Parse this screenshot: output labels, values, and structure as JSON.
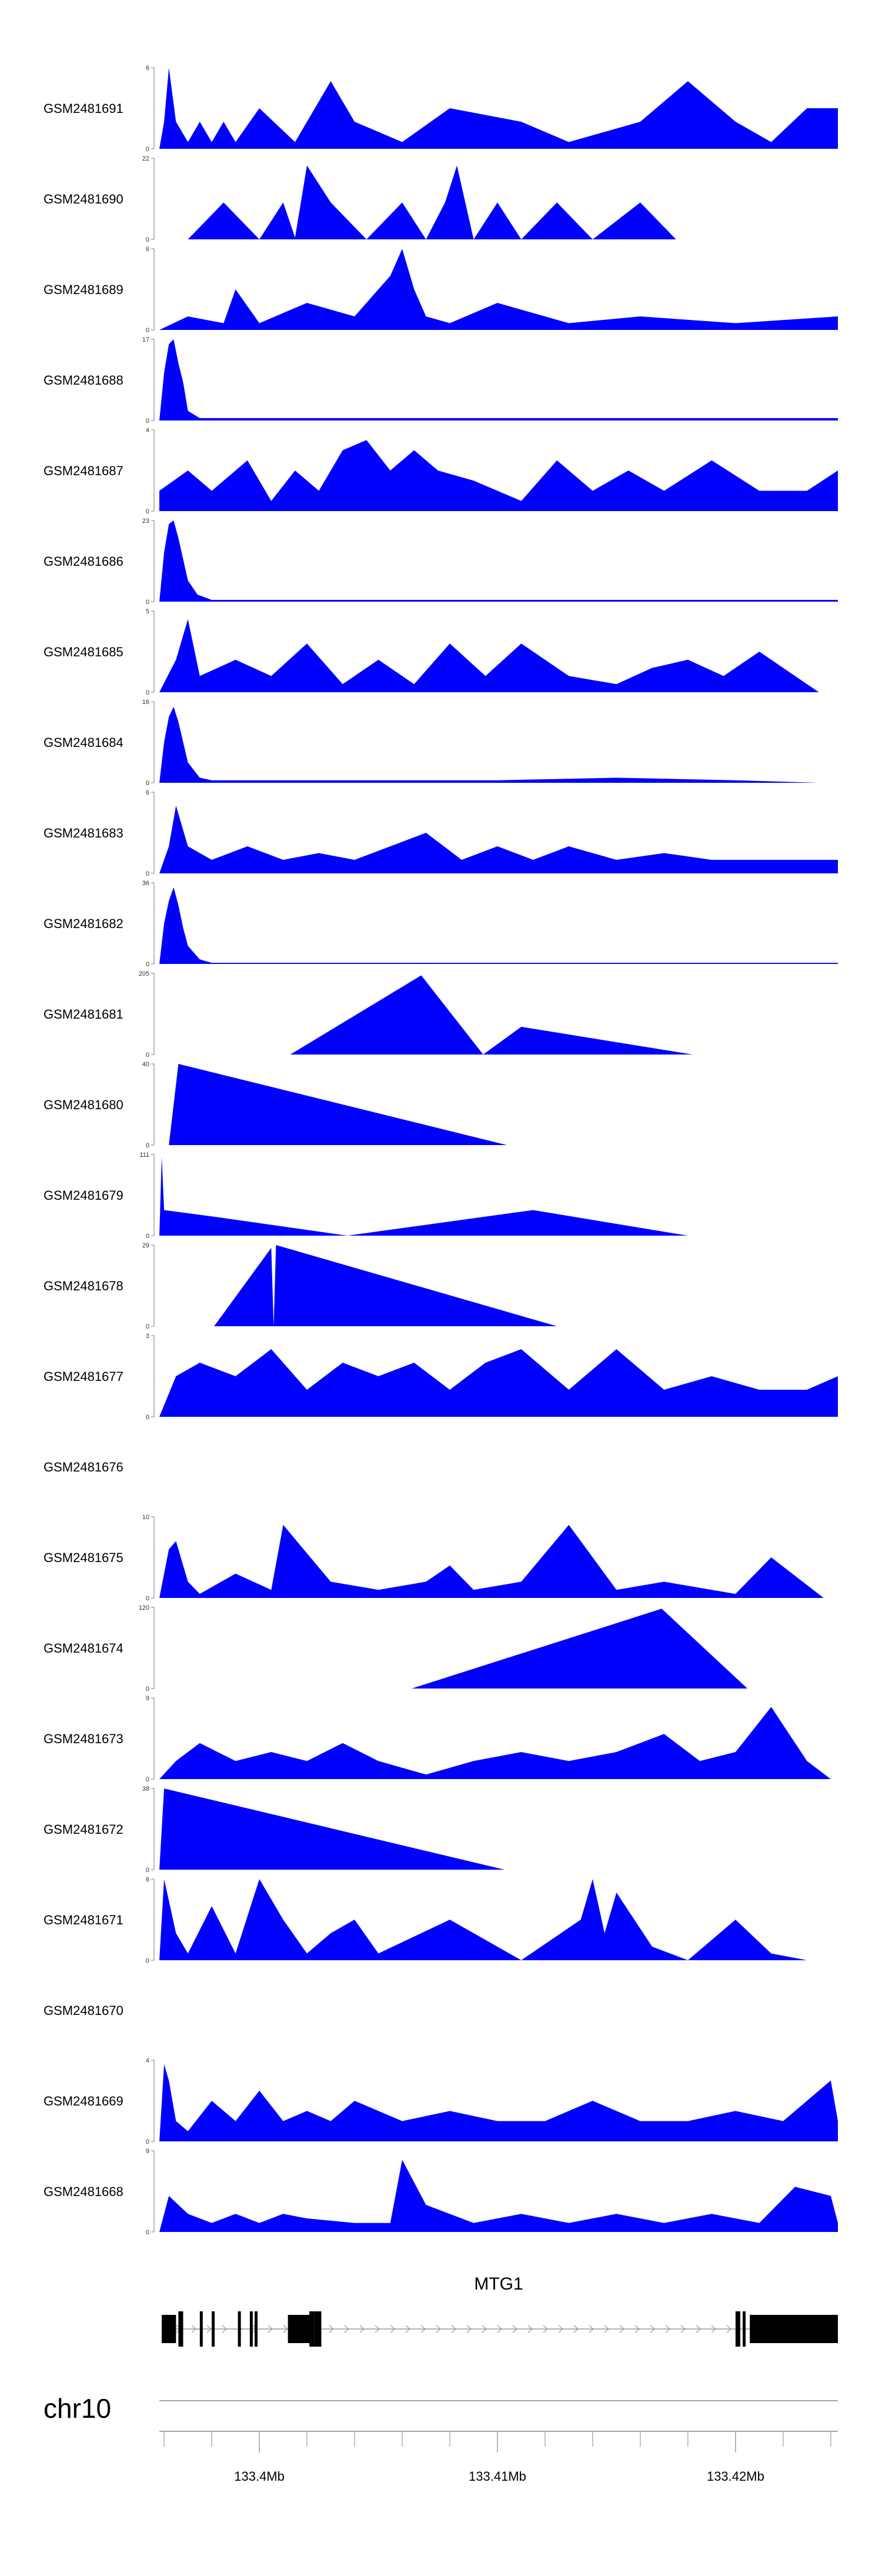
{
  "chart_data": {
    "type": "area",
    "title": "",
    "x_range": [
      133.3958,
      133.4243
    ],
    "xlabel": "",
    "ylabel": "",
    "fill_color": "#0000ff",
    "tracks": [
      {
        "name": "GSM2481691",
        "ymax": 6,
        "x": [
          133.3958,
          133.396,
          133.3962,
          133.3965,
          133.397,
          133.3975,
          133.398,
          133.3985,
          133.399,
          133.4,
          133.4015,
          133.403,
          133.404,
          133.406,
          133.408,
          133.411,
          133.413,
          133.416,
          133.418,
          133.42,
          133.4215,
          133.423,
          133.4243
        ],
        "y": [
          0,
          2,
          6,
          2,
          0.5,
          2,
          0.5,
          2,
          0.5,
          3,
          0.5,
          5,
          2,
          0.5,
          3,
          2,
          0.5,
          2,
          5,
          2,
          0.5,
          3,
          3
        ]
      },
      {
        "name": "GSM2481690",
        "ymax": 22,
        "x": [
          133.397,
          133.3985,
          133.4,
          133.401,
          133.4015,
          133.402,
          133.403,
          133.4045,
          133.406,
          133.407,
          133.4078,
          133.4083,
          133.409,
          133.41,
          133.411,
          133.4125,
          133.414,
          133.416,
          133.4175
        ],
        "y": [
          0,
          10,
          0,
          10,
          0.5,
          20,
          10,
          0,
          10,
          0,
          10,
          20,
          0,
          10,
          0,
          10,
          0,
          10,
          0
        ]
      },
      {
        "name": "GSM2481689",
        "ymax": 6,
        "x": [
          133.3958,
          133.397,
          133.3985,
          133.399,
          133.4,
          133.402,
          133.404,
          133.4055,
          133.406,
          133.4065,
          133.407,
          133.408,
          133.41,
          133.413,
          133.416,
          133.42,
          133.4243
        ],
        "y": [
          0,
          1,
          0.5,
          3,
          0.5,
          2,
          1,
          4,
          6,
          3,
          1,
          0.5,
          2,
          0.5,
          1,
          0.5,
          1
        ]
      },
      {
        "name": "GSM2481688",
        "ymax": 17,
        "x": [
          133.3958,
          133.396,
          133.3962,
          133.3964,
          133.3966,
          133.3968,
          133.397,
          133.3975,
          133.398,
          133.4,
          133.405,
          133.41,
          133.415,
          133.42,
          133.4243
        ],
        "y": [
          0,
          10,
          16,
          17,
          12,
          8,
          2,
          0.5,
          0.5,
          0.5,
          0.5,
          0.5,
          0.5,
          0.5,
          0.5
        ]
      },
      {
        "name": "GSM2481687",
        "ymax": 4,
        "x": [
          133.3958,
          133.397,
          133.398,
          133.3995,
          133.4005,
          133.4015,
          133.4025,
          133.4035,
          133.4045,
          133.4055,
          133.4065,
          133.4075,
          133.409,
          133.411,
          133.4125,
          133.414,
          133.4155,
          133.417,
          133.419,
          133.421,
          133.423,
          133.4243
        ],
        "y": [
          1,
          2,
          1,
          2.5,
          0.5,
          2,
          1,
          3,
          3.5,
          2,
          3,
          2,
          1.5,
          0.5,
          2.5,
          1,
          2,
          1,
          2.5,
          1,
          1,
          2
        ]
      },
      {
        "name": "GSM2481686",
        "ymax": 23,
        "x": [
          133.3958,
          133.396,
          133.3962,
          133.3964,
          133.3966,
          133.3968,
          133.397,
          133.3974,
          133.398,
          133.4,
          133.405,
          133.41,
          133.415,
          133.42,
          133.4243
        ],
        "y": [
          0,
          14,
          22,
          23,
          18,
          12,
          6,
          2,
          0.5,
          0.5,
          0.5,
          0.5,
          0.5,
          0.5,
          0.5
        ]
      },
      {
        "name": "GSM2481685",
        "ymax": 5,
        "x": [
          133.3958,
          133.3965,
          133.397,
          133.3975,
          133.399,
          133.4005,
          133.402,
          133.4035,
          133.405,
          133.4065,
          133.408,
          133.4095,
          133.411,
          133.413,
          133.415,
          133.4165,
          133.418,
          133.4195,
          133.421,
          133.4235
        ],
        "y": [
          0,
          2,
          4.5,
          1,
          2,
          1,
          3,
          0.5,
          2,
          0.5,
          3,
          1,
          3,
          1,
          0.5,
          1.5,
          2,
          1,
          2.5,
          0
        ]
      },
      {
        "name": "GSM2481684",
        "ymax": 16,
        "x": [
          133.3958,
          133.396,
          133.3962,
          133.3964,
          133.3966,
          133.3968,
          133.397,
          133.3975,
          133.398,
          133.4,
          133.405,
          133.41,
          133.415,
          133.42,
          133.4235
        ],
        "y": [
          0,
          8,
          13,
          15,
          12,
          8,
          4,
          1,
          0.5,
          0.5,
          0.5,
          0.5,
          1,
          0.5,
          0
        ]
      },
      {
        "name": "GSM2481683",
        "ymax": 6,
        "x": [
          133.3958,
          133.3962,
          133.3965,
          133.397,
          133.398,
          133.3995,
          133.401,
          133.4025,
          133.404,
          133.4055,
          133.407,
          133.4085,
          133.41,
          133.4115,
          133.413,
          133.415,
          133.417,
          133.419,
          133.421,
          133.423,
          133.4243
        ],
        "y": [
          0,
          2,
          5,
          2,
          1,
          2,
          1,
          1.5,
          1,
          2,
          3,
          1,
          2,
          1,
          2,
          1,
          1.5,
          1,
          1,
          1,
          1
        ]
      },
      {
        "name": "GSM2481682",
        "ymax": 36,
        "x": [
          133.3958,
          133.396,
          133.3962,
          133.3964,
          133.3966,
          133.3968,
          133.397,
          133.3975,
          133.398,
          133.4,
          133.405,
          133.41,
          133.415,
          133.42,
          133.4243
        ],
        "y": [
          0,
          18,
          28,
          34,
          26,
          16,
          8,
          2,
          0.5,
          0.5,
          0.5,
          0.5,
          0.5,
          0.5,
          0.5
        ]
      },
      {
        "name": "GSM2481681",
        "ymax": 205,
        "x": [
          133.4013,
          133.4068,
          133.4094,
          133.411,
          133.4182
        ],
        "y": [
          0,
          200,
          0,
          70,
          0
        ]
      },
      {
        "name": "GSM2481680",
        "ymax": 40,
        "x": [
          133.3962,
          133.3966,
          133.4104
        ],
        "y": [
          0,
          40,
          0
        ]
      },
      {
        "name": "GSM2481679",
        "ymax": 111,
        "x": [
          133.3958,
          133.3959,
          133.396,
          133.3983,
          133.4037,
          133.4115,
          133.418
        ],
        "y": [
          0,
          108,
          35,
          25,
          0,
          35,
          0
        ]
      },
      {
        "name": "GSM2481678",
        "ymax": 29,
        "x": [
          133.3981,
          133.4005,
          133.4006,
          133.4007,
          133.4125
        ],
        "y": [
          0,
          28,
          0,
          29,
          0
        ]
      },
      {
        "name": "GSM2481677",
        "ymax": 3,
        "x": [
          133.3958,
          133.3965,
          133.3975,
          133.399,
          133.4005,
          133.402,
          133.4035,
          133.405,
          133.4065,
          133.408,
          133.4095,
          133.411,
          133.413,
          133.415,
          133.417,
          133.419,
          133.421,
          133.423,
          133.4243
        ],
        "y": [
          0,
          1.5,
          2,
          1.5,
          2.5,
          1,
          2,
          1.5,
          2,
          1,
          2,
          2.5,
          1,
          2.5,
          1,
          1.5,
          1,
          1,
          1.5
        ]
      },
      {
        "name": "GSM2481676",
        "ymax": null,
        "x": [],
        "y": []
      },
      {
        "name": "GSM2481675",
        "ymax": 10,
        "x": [
          133.3958,
          133.3962,
          133.3965,
          133.397,
          133.3975,
          133.399,
          133.4005,
          133.401,
          133.403,
          133.405,
          133.407,
          133.408,
          133.409,
          133.411,
          133.413,
          133.415,
          133.417,
          133.42,
          133.4215,
          133.4237
        ],
        "y": [
          0,
          6,
          7,
          2,
          0.5,
          3,
          1,
          9,
          2,
          1,
          2,
          4,
          1,
          2,
          9,
          1,
          2,
          0.5,
          5,
          0
        ]
      },
      {
        "name": "GSM2481674",
        "ymax": 120,
        "x": [
          133.4064,
          133.4169,
          133.4205
        ],
        "y": [
          0,
          118,
          0
        ]
      },
      {
        "name": "GSM2481673",
        "ymax": 9,
        "x": [
          133.3958,
          133.3965,
          133.3975,
          133.399,
          133.4005,
          133.402,
          133.4035,
          133.405,
          133.407,
          133.409,
          133.411,
          133.413,
          133.415,
          133.417,
          133.4185,
          133.42,
          133.4215,
          133.423,
          133.424
        ],
        "y": [
          0,
          2,
          4,
          2,
          3,
          2,
          4,
          2,
          0.5,
          2,
          3,
          2,
          3,
          5,
          2,
          3,
          8,
          2,
          0
        ]
      },
      {
        "name": "GSM2481672",
        "ymax": 38,
        "x": [
          133.3958,
          133.396,
          133.4103
        ],
        "y": [
          0,
          38,
          0
        ]
      },
      {
        "name": "GSM2481671",
        "ymax": 6,
        "x": [
          133.3958,
          133.396,
          133.3965,
          133.397,
          133.398,
          133.399,
          133.4,
          133.401,
          133.402,
          133.403,
          133.404,
          133.405,
          133.408,
          133.411,
          133.4135,
          133.414,
          133.4145,
          133.415,
          133.4165,
          133.418,
          133.42,
          133.4215,
          133.423
        ],
        "y": [
          0,
          6,
          2,
          0.5,
          4,
          0.5,
          6,
          3,
          0.5,
          2,
          3,
          0.5,
          3,
          0,
          3,
          6,
          2,
          5,
          1,
          0,
          3,
          0.5,
          0
        ]
      },
      {
        "name": "GSM2481670",
        "ymax": null,
        "x": [],
        "y": []
      },
      {
        "name": "GSM2481669",
        "ymax": 4,
        "x": [
          133.3958,
          133.396,
          133.3962,
          133.3965,
          133.397,
          133.398,
          133.399,
          133.4,
          133.401,
          133.402,
          133.403,
          133.404,
          133.406,
          133.408,
          133.41,
          133.412,
          133.414,
          133.416,
          133.418,
          133.42,
          133.422,
          133.424,
          133.4243
        ],
        "y": [
          0,
          3.8,
          3,
          1,
          0.5,
          2,
          1,
          2.5,
          1,
          1.5,
          1,
          2,
          1,
          1.5,
          1,
          1,
          2,
          1,
          1,
          1.5,
          1,
          3,
          1
        ]
      },
      {
        "name": "GSM2481668",
        "ymax": 9,
        "x": [
          133.3958,
          133.3962,
          133.397,
          133.398,
          133.399,
          133.4,
          133.401,
          133.402,
          133.404,
          133.4055,
          133.406,
          133.407,
          133.409,
          133.411,
          133.413,
          133.415,
          133.417,
          133.419,
          133.421,
          133.4225,
          133.424,
          133.4243
        ],
        "y": [
          0,
          4,
          2,
          1,
          2,
          1,
          2,
          1.5,
          1,
          1,
          8,
          3,
          1,
          2,
          1,
          2,
          1,
          2,
          1,
          5,
          4,
          1
        ]
      }
    ],
    "gene_track": {
      "gene": "MTG1",
      "exons": [
        [
          133.3959,
          133.3965
        ],
        [
          133.3966,
          133.3968
        ],
        [
          133.3975,
          133.3976
        ],
        [
          133.398,
          133.3981
        ],
        [
          133.3991,
          133.3992
        ],
        [
          133.3996,
          133.3997
        ],
        [
          133.3998,
          133.3999
        ],
        [
          133.4012,
          133.4022
        ],
        [
          133.4021,
          133.4023
        ],
        [
          133.4024,
          133.4026
        ],
        [
          133.4023,
          133.4026
        ],
        [
          133.42,
          133.4202
        ],
        [
          133.4203,
          133.4204
        ],
        [
          133.4206,
          133.4243
        ]
      ],
      "intron_range": [
        133.3959,
        133.4243
      ],
      "strand": "+"
    },
    "axis": {
      "chromosome": "chr10",
      "tick_labels": [
        "133.4Mb",
        "133.41Mb",
        "133.42Mb"
      ],
      "tick_values": [
        133.4,
        133.41,
        133.42
      ],
      "minor_step": 0.002
    }
  }
}
